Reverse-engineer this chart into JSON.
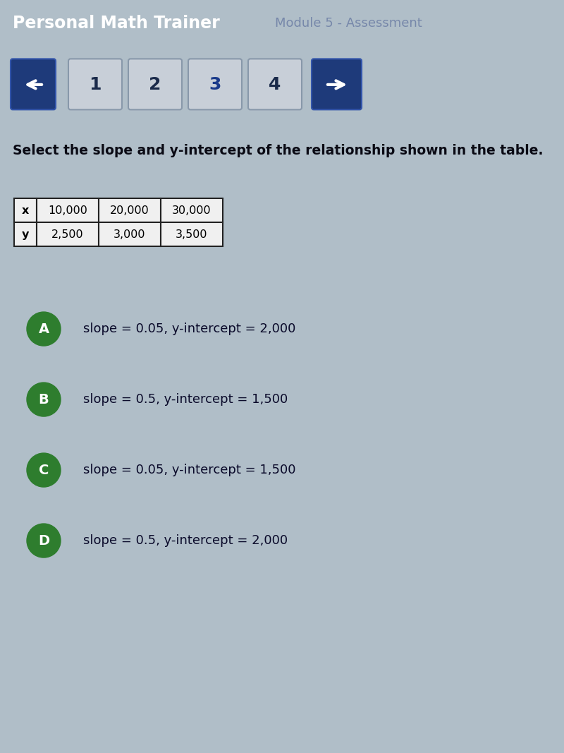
{
  "header_bg": "#0a1628",
  "nav_bg": "#0a1628",
  "content_bg": "#b0bec8",
  "header_title": "Personal Math Trainer",
  "header_module": "Module 5 - Assessment",
  "nav_numbers": [
    "1",
    "2",
    "3",
    "4"
  ],
  "question": "Select the slope and y-intercept of the relationship shown in the table.",
  "table_headers": [
    "x",
    "10,000",
    "20,000",
    "30,000"
  ],
  "table_row2": [
    "y",
    "2,500",
    "3,000",
    "3,500"
  ],
  "options": [
    {
      "label": "A",
      "text": "slope = 0.05, y-intercept = 2,000",
      "color": "#2e7d2e"
    },
    {
      "label": "B",
      "text": "slope = 0.5, y-intercept = 1,500",
      "color": "#2e7d2e"
    },
    {
      "label": "C",
      "text": "slope = 0.05, y-intercept = 1,500",
      "color": "#2e7d2e"
    },
    {
      "label": "D",
      "text": "slope = 0.5, y-intercept = 2,000",
      "color": "#2e7d2e"
    }
  ],
  "sep_color": "#1a3a6a",
  "btn_face": "#c8cfd8",
  "btn_edge": "#8898aa",
  "arrow_btn_face": "#1e3a7a",
  "btn_text_color": "#1a2a4a",
  "header_title_color": "#ffffff",
  "header_module_color": "#7788aa",
  "question_color": "#0a0a14",
  "table_face": "#f0f0f0",
  "table_edge": "#222222",
  "option_text_color": "#0a0a2a"
}
